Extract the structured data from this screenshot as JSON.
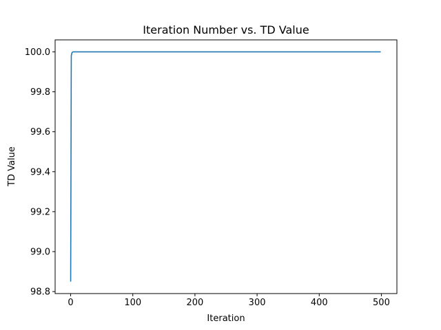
{
  "chart_data": {
    "type": "line",
    "title": "Iteration Number vs. TD Value",
    "xlabel": "Iteration",
    "ylabel": "TD Value",
    "xlim": [
      -25,
      525
    ],
    "ylim": [
      98.79,
      100.06
    ],
    "x_ticks": [
      0,
      100,
      200,
      300,
      400,
      500
    ],
    "x_tick_labels": [
      "0",
      "100",
      "200",
      "300",
      "400",
      "500"
    ],
    "y_ticks": [
      98.8,
      99.0,
      99.2,
      99.4,
      99.6,
      99.8,
      100.0
    ],
    "y_tick_labels": [
      "98.8",
      "99.0",
      "99.2",
      "99.4",
      "99.6",
      "99.8",
      "100.0"
    ],
    "grid": false,
    "series": [
      {
        "color": "#1f77b4",
        "x": [
          0,
          1,
          2,
          3,
          4,
          5,
          10,
          50,
          100,
          200,
          300,
          400,
          499
        ],
        "y": [
          98.85,
          99.98,
          99.995,
          99.999,
          100.0,
          100.0,
          100.0,
          100.0,
          100.0,
          100.0,
          100.0,
          100.0,
          100.0
        ]
      }
    ]
  }
}
